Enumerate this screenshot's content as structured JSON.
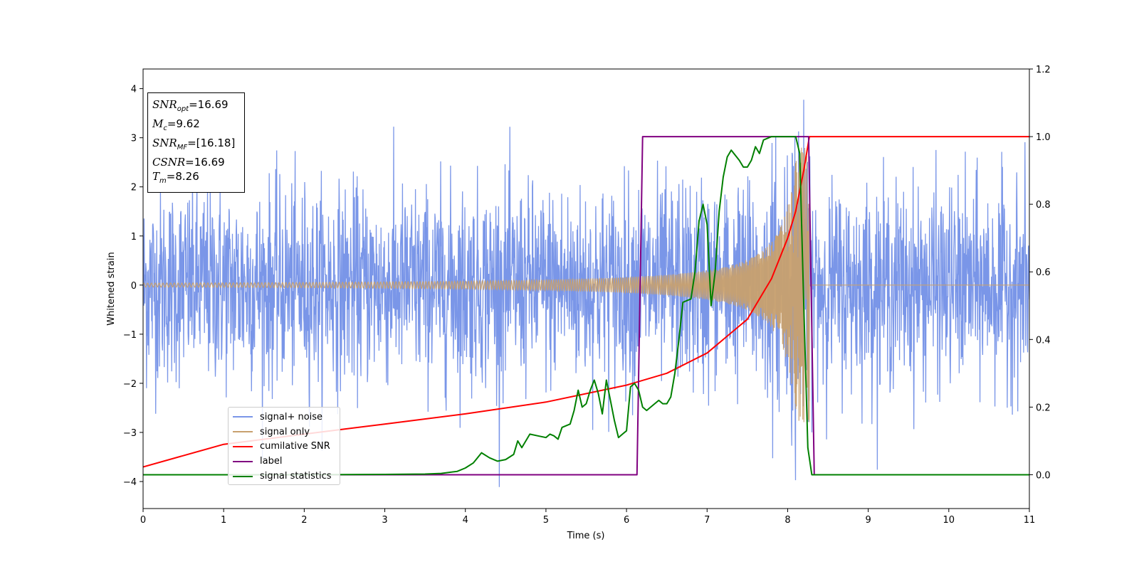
{
  "chart_data": {
    "type": "line",
    "xlabel": "Time (s)",
    "ylabel": "Whitened strain",
    "xlim": [
      0,
      11
    ],
    "ylim": [
      -4.55,
      4.4
    ],
    "ylim_right": [
      -0.1,
      1.2
    ],
    "x_ticks": [
      "0",
      "1",
      "2",
      "3",
      "4",
      "5",
      "6",
      "7",
      "8",
      "9",
      "10",
      "11"
    ],
    "y_ticks": [
      "4",
      "3",
      "2",
      "1",
      "0",
      "−1",
      "−2",
      "−3",
      "−4"
    ],
    "y_ticks_right": [
      "1.2",
      "1.0",
      "0.8",
      "0.6",
      "0.4",
      "0.2",
      "0.0"
    ],
    "grid": false,
    "legend_position": "lower-left",
    "stats_box": [
      {
        "sym": "SNR",
        "sub": "opt",
        "value": "=16.69"
      },
      {
        "sym": "M",
        "sub": "c",
        "value": "=9.62"
      },
      {
        "sym": "SNR",
        "sub": "MF",
        "value": "=[16.18]"
      },
      {
        "sym": "CSNR",
        "sub": "",
        "value": "=16.69"
      },
      {
        "sym": "T",
        "sub": "m",
        "value": "=8.26"
      }
    ],
    "series": [
      {
        "name": "signal+ noise",
        "axis": "left",
        "color": "#7a96e8",
        "description_values": {
          "noise_std": 1.0,
          "noise_peak_max": 3.97,
          "noise_peak_min": -4.15
        }
      },
      {
        "name": "signal only",
        "axis": "left",
        "color": "#c8a06e",
        "chirp": {
          "t_start": 0,
          "t_merger": 8.27,
          "amplitude_start": 0.04,
          "amplitude_peak": 2.8,
          "after_merger": 0
        }
      },
      {
        "name": "cumilative SNR",
        "axis": "right",
        "color": "#ff0000",
        "x": [
          0,
          1,
          2,
          3,
          4,
          5,
          6,
          6.5,
          7,
          7.5,
          7.8,
          8.0,
          8.1,
          8.2,
          8.27,
          8.3,
          11
        ],
        "y": [
          0.023,
          0.09,
          0.12,
          0.15,
          0.18,
          0.215,
          0.265,
          0.3,
          0.36,
          0.46,
          0.58,
          0.7,
          0.78,
          0.9,
          1.0,
          1.0,
          1.0
        ]
      },
      {
        "name": "label",
        "axis": "right",
        "color": "#800080",
        "x": [
          0,
          6.13,
          6.2,
          8.26,
          8.33,
          11
        ],
        "y": [
          0,
          0,
          1,
          1,
          0,
          0
        ]
      },
      {
        "name": "signal statistics",
        "axis": "right",
        "color": "#008000",
        "x": [
          0,
          1,
          2,
          3,
          3.5,
          3.7,
          3.9,
          4.0,
          4.1,
          4.15,
          4.2,
          4.3,
          4.4,
          4.5,
          4.6,
          4.65,
          4.7,
          4.8,
          4.9,
          5.0,
          5.05,
          5.1,
          5.15,
          5.2,
          5.3,
          5.35,
          5.4,
          5.45,
          5.5,
          5.55,
          5.6,
          5.65,
          5.7,
          5.75,
          5.8,
          5.85,
          5.9,
          5.95,
          6.0,
          6.05,
          6.1,
          6.15,
          6.2,
          6.25,
          6.3,
          6.35,
          6.4,
          6.45,
          6.5,
          6.55,
          6.6,
          6.65,
          6.7,
          6.8,
          6.85,
          6.9,
          6.95,
          7.0,
          7.05,
          7.1,
          7.15,
          7.2,
          7.25,
          7.3,
          7.4,
          7.45,
          7.5,
          7.55,
          7.6,
          7.65,
          7.7,
          7.8,
          7.9,
          8.0,
          8.1,
          8.15,
          8.2,
          8.25,
          8.3,
          11
        ],
        "y": [
          0,
          0,
          0,
          0.001,
          0.002,
          0.004,
          0.01,
          0.02,
          0.035,
          0.05,
          0.065,
          0.05,
          0.04,
          0.045,
          0.06,
          0.1,
          0.08,
          0.12,
          0.115,
          0.11,
          0.12,
          0.115,
          0.105,
          0.14,
          0.15,
          0.19,
          0.25,
          0.2,
          0.21,
          0.25,
          0.28,
          0.24,
          0.18,
          0.28,
          0.22,
          0.16,
          0.11,
          0.12,
          0.13,
          0.26,
          0.27,
          0.25,
          0.2,
          0.19,
          0.2,
          0.21,
          0.22,
          0.21,
          0.21,
          0.23,
          0.3,
          0.4,
          0.51,
          0.52,
          0.6,
          0.75,
          0.8,
          0.74,
          0.5,
          0.6,
          0.78,
          0.88,
          0.94,
          0.96,
          0.93,
          0.91,
          0.91,
          0.93,
          0.97,
          0.95,
          0.99,
          1.0,
          1.0,
          1.0,
          1.0,
          0.95,
          0.5,
          0.08,
          0.0,
          0.0
        ]
      }
    ]
  }
}
